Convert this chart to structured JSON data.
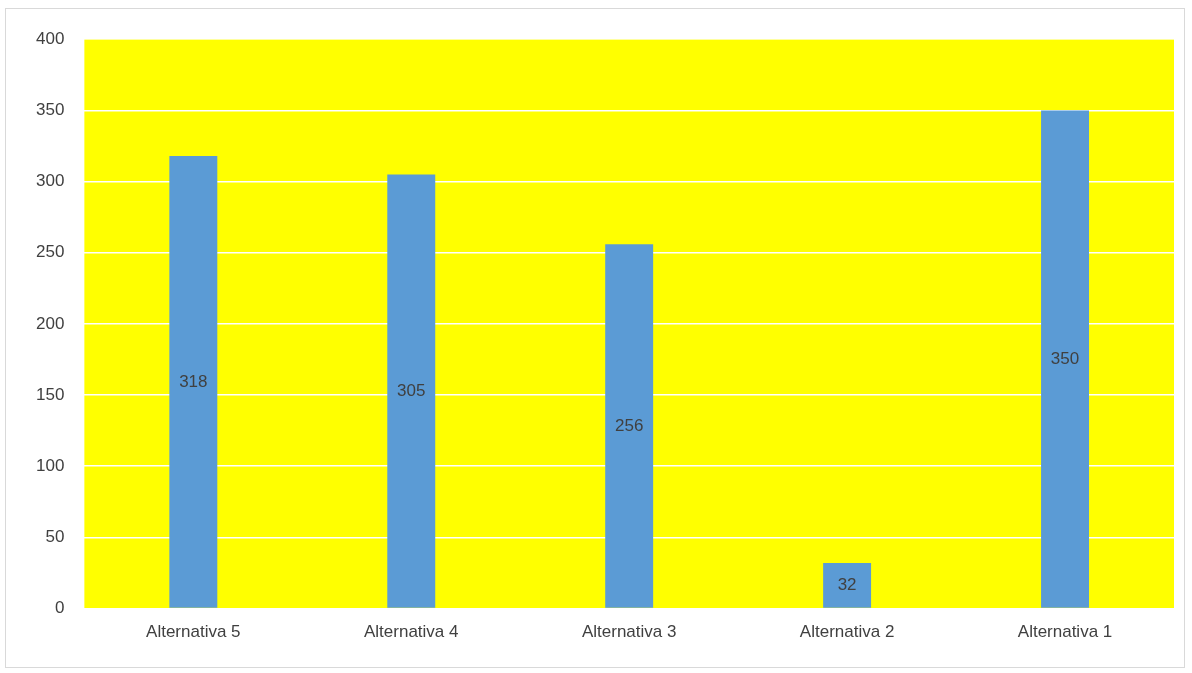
{
  "chart_data": {
    "type": "bar",
    "categories": [
      "Alternativa 5",
      "Alternativa 4",
      "Alternativa 3",
      "Alternativa 2",
      "Alternativa 1"
    ],
    "values": [
      318,
      305,
      256,
      32,
      350
    ],
    "color": "#5b9bd5",
    "ylim": [
      0,
      400
    ],
    "yticks": [
      0,
      50,
      100,
      150,
      200,
      250,
      300,
      350,
      400
    ],
    "grid": "y",
    "data_labels": true
  }
}
